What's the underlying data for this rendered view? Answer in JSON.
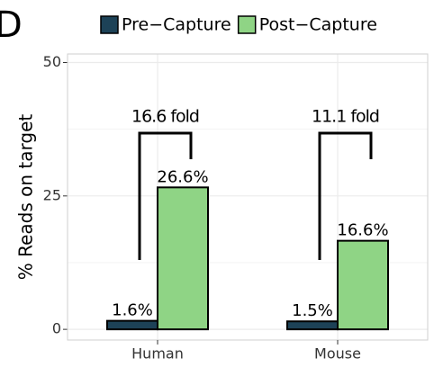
{
  "panel_label": "D",
  "chart_data": {
    "type": "bar",
    "ylabel": "% Reads on target",
    "categories": [
      "Human",
      "Mouse"
    ],
    "series": [
      {
        "name": "Pre−Capture",
        "color": "#1d4257",
        "values": [
          1.6,
          1.5
        ],
        "value_labels": [
          "1.6%",
          "1.5%"
        ]
      },
      {
        "name": "Post−Capture",
        "color": "#8fd485",
        "values": [
          26.6,
          16.6
        ],
        "value_labels": [
          "26.6%",
          "16.6%"
        ]
      }
    ],
    "annotations": [
      "16.6 fold",
      "11.1 fold"
    ],
    "ylim": [
      -2,
      51.6
    ],
    "yticks": [
      0,
      25,
      50
    ],
    "grid": true,
    "legend": "top"
  }
}
